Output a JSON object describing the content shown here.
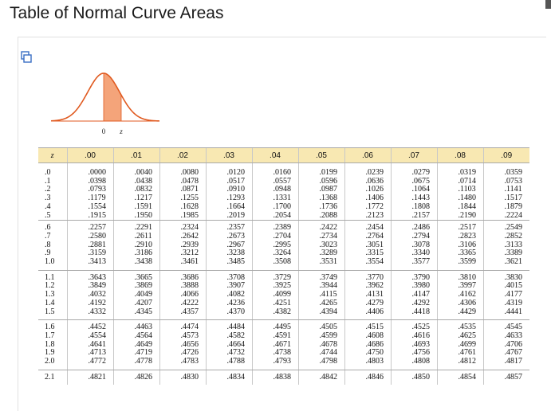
{
  "title": "Table of Normal Curve Areas",
  "figure": {
    "axis_zero": "0",
    "axis_z": "z",
    "fill_color": "#f4a47a",
    "curve_color": "#e05a20"
  },
  "table": {
    "headers": [
      "z",
      ".00",
      ".01",
      ".02",
      ".03",
      ".04",
      ".05",
      ".06",
      ".07",
      ".08",
      ".09"
    ],
    "groups": [
      {
        "z": [
          ".0",
          ".1",
          ".2",
          ".3",
          ".4",
          ".5"
        ],
        "cols": [
          [
            ".0000",
            ".0398",
            ".0793",
            ".1179",
            ".1554",
            ".1915"
          ],
          [
            ".0040",
            ".0438",
            ".0832",
            ".1217",
            ".1591",
            ".1950"
          ],
          [
            ".0080",
            ".0478",
            ".0871",
            ".1255",
            ".1628",
            ".1985"
          ],
          [
            ".0120",
            ".0517",
            ".0910",
            ".1293",
            ".1664",
            ".2019"
          ],
          [
            ".0160",
            ".0557",
            ".0948",
            ".1331",
            ".1700",
            ".2054"
          ],
          [
            ".0199",
            ".0596",
            ".0987",
            ".1368",
            ".1736",
            ".2088"
          ],
          [
            ".0239",
            ".0636",
            ".1026",
            ".1406",
            ".1772",
            ".2123"
          ],
          [
            ".0279",
            ".0675",
            ".1064",
            ".1443",
            ".1808",
            ".2157"
          ],
          [
            ".0319",
            ".0714",
            ".1103",
            ".1480",
            ".1844",
            ".2190"
          ],
          [
            ".0359",
            ".0753",
            ".1141",
            ".1517",
            ".1879",
            ".2224"
          ]
        ]
      },
      {
        "z": [
          ".6",
          ".7",
          ".8",
          ".9",
          "1.0"
        ],
        "cols": [
          [
            ".2257",
            ".2580",
            ".2881",
            ".3159",
            ".3413"
          ],
          [
            ".2291",
            ".2611",
            ".2910",
            ".3186",
            ".3438"
          ],
          [
            ".2324",
            ".2642",
            ".2939",
            ".3212",
            ".3461"
          ],
          [
            ".2357",
            ".2673",
            ".2967",
            ".3238",
            ".3485"
          ],
          [
            ".2389",
            ".2704",
            ".2995",
            ".3264",
            ".3508"
          ],
          [
            ".2422",
            ".2734",
            ".3023",
            ".3289",
            ".3531"
          ],
          [
            ".2454",
            ".2764",
            ".3051",
            ".3315",
            ".3554"
          ],
          [
            ".2486",
            ".2794",
            ".3078",
            ".3340",
            ".3577"
          ],
          [
            ".2517",
            ".2823",
            ".3106",
            ".3365",
            ".3599"
          ],
          [
            ".2549",
            ".2852",
            ".3133",
            ".3389",
            ".3621"
          ]
        ]
      },
      {
        "z": [
          "1.1",
          "1.2",
          "1.3",
          "1.4",
          "1.5"
        ],
        "cols": [
          [
            ".3643",
            ".3849",
            ".4032",
            ".4192",
            ".4332"
          ],
          [
            ".3665",
            ".3869",
            ".4049",
            ".4207",
            ".4345"
          ],
          [
            ".3686",
            ".3888",
            ".4066",
            ".4222",
            ".4357"
          ],
          [
            ".3708",
            ".3907",
            ".4082",
            ".4236",
            ".4370"
          ],
          [
            ".3729",
            ".3925",
            ".4099",
            ".4251",
            ".4382"
          ],
          [
            ".3749",
            ".3944",
            ".4115",
            ".4265",
            ".4394"
          ],
          [
            ".3770",
            ".3962",
            ".4131",
            ".4279",
            ".4406"
          ],
          [
            ".3790",
            ".3980",
            ".4147",
            ".4292",
            ".4418"
          ],
          [
            ".3810",
            ".3997",
            ".4162",
            ".4306",
            ".4429"
          ],
          [
            ".3830",
            ".4015",
            ".4177",
            ".4319",
            ".4441"
          ]
        ]
      },
      {
        "z": [
          "1.6",
          "1.7",
          "1.8",
          "1.9",
          "2.0"
        ],
        "cols": [
          [
            ".4452",
            ".4554",
            ".4641",
            ".4713",
            ".4772"
          ],
          [
            ".4463",
            ".4564",
            ".4649",
            ".4719",
            ".4778"
          ],
          [
            ".4474",
            ".4573",
            ".4656",
            ".4726",
            ".4783"
          ],
          [
            ".4484",
            ".4582",
            ".4664",
            ".4732",
            ".4788"
          ],
          [
            ".4495",
            ".4591",
            ".4671",
            ".4738",
            ".4793"
          ],
          [
            ".4505",
            ".4599",
            ".4678",
            ".4744",
            ".4798"
          ],
          [
            ".4515",
            ".4608",
            ".4686",
            ".4750",
            ".4803"
          ],
          [
            ".4525",
            ".4616",
            ".4693",
            ".4756",
            ".4808"
          ],
          [
            ".4535",
            ".4625",
            ".4699",
            ".4761",
            ".4812"
          ],
          [
            ".4545",
            ".4633",
            ".4706",
            ".4767",
            ".4817"
          ]
        ]
      },
      {
        "z": [
          "2.1"
        ],
        "cols": [
          [
            ".4821"
          ],
          [
            ".4826"
          ],
          [
            ".4830"
          ],
          [
            ".4834"
          ],
          [
            ".4838"
          ],
          [
            ".4842"
          ],
          [
            ".4846"
          ],
          [
            ".4850"
          ],
          [
            ".4854"
          ],
          [
            ".4857"
          ]
        ]
      }
    ]
  }
}
